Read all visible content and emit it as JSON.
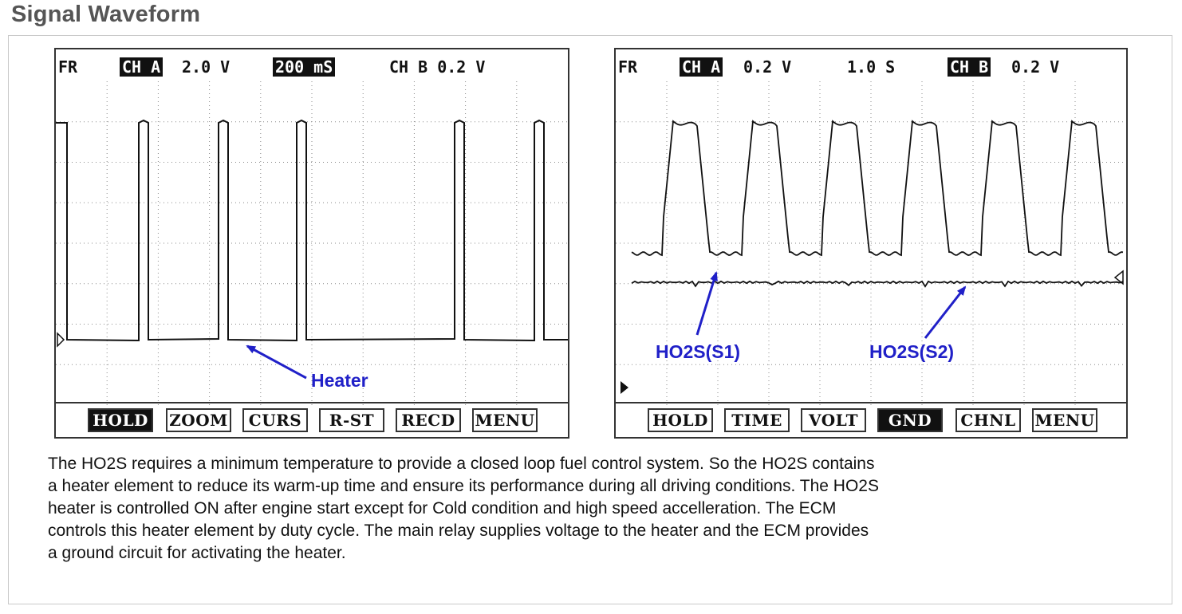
{
  "page": {
    "title": "Signal Waveform"
  },
  "scopes": [
    {
      "header": {
        "mode": "FR",
        "ch_a_label": "CH A",
        "ch_a_scale": "2.0 V",
        "timebase": "200 mS",
        "ch_b": "CH B 0.2 V"
      },
      "softkeys": [
        {
          "label": "HOLD",
          "active": true
        },
        {
          "label": "ZOOM",
          "active": false
        },
        {
          "label": "CURS",
          "active": false
        },
        {
          "label": "R-ST",
          "active": false
        },
        {
          "label": "RECD",
          "active": false
        },
        {
          "label": "MENU",
          "active": false
        }
      ],
      "annotations": [
        "Heater"
      ]
    },
    {
      "header": {
        "mode": "FR",
        "ch_a_label": "CH A",
        "ch_a_scale": "0.2 V",
        "timebase": "1.0 S",
        "ch_b_label": "CH B",
        "ch_b_scale": "0.2 V"
      },
      "softkeys": [
        {
          "label": "HOLD",
          "active": false
        },
        {
          "label": "TIME",
          "active": false
        },
        {
          "label": "VOLT",
          "active": false
        },
        {
          "label": "GND",
          "active": true
        },
        {
          "label": "CHNL",
          "active": false
        },
        {
          "label": "MENU",
          "active": false
        }
      ],
      "annotations": [
        "HO2S(S1)",
        "HO2S(S2)"
      ]
    }
  ],
  "description": {
    "lines": [
      "The HO2S requires a minimum temperature to provide a closed loop fuel control system. So the HO2S contains",
      "a heater element to reduce its warm-up time and ensure its performance during all driving conditions.  The HO2S",
      "heater is controlled ON after engine start except for Cold condition and high speed accelleration. The ECM",
      "controls this heater element by duty cycle.  The main relay supplies voltage to the heater and the ECM provides",
      "a ground circuit for activating the heater."
    ]
  },
  "colors": {
    "annotation": "#2020c8",
    "trace": "#111111",
    "grid": "#888888",
    "title": "#555555"
  }
}
